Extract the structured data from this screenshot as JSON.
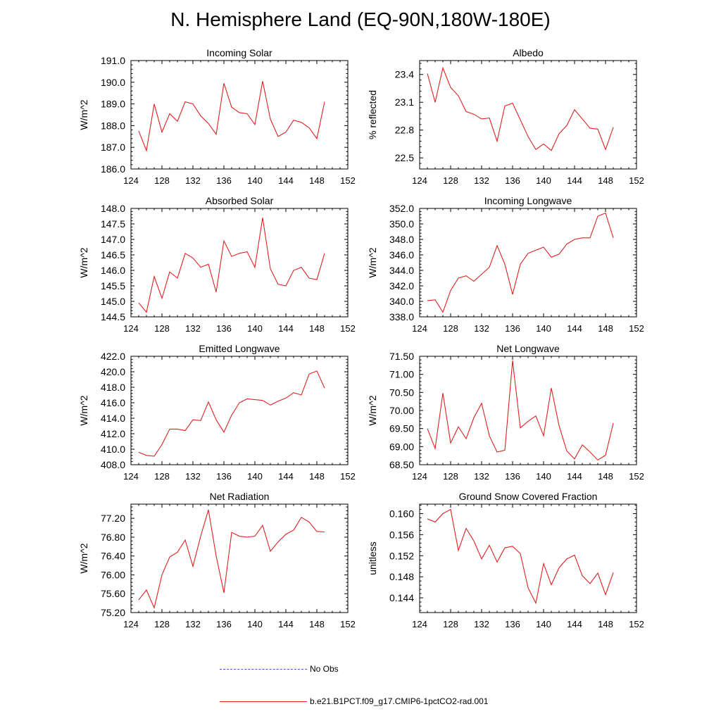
{
  "title": "N. Hemisphere Land (EQ-90N,180W-180E)",
  "legend": {
    "items": [
      {
        "label": "No Obs",
        "color": "#4455cc",
        "style": "dashed"
      },
      {
        "label": "b.e21.B1PCT.f09_g17.CMIP6-1pctCO2-rad.001",
        "color": "#dd2222",
        "style": "solid"
      }
    ]
  },
  "colors": {
    "series": "#dd2222",
    "axis": "#000000"
  },
  "chart_data": [
    {
      "type": "line",
      "title": "Incoming Solar",
      "xlabel": "",
      "ylabel": "W/m^2",
      "xlim": [
        124,
        152
      ],
      "ylim": [
        186.0,
        191.0
      ],
      "xticks": [
        124,
        128,
        132,
        136,
        140,
        144,
        148,
        152
      ],
      "yticks": [
        186.0,
        187.0,
        188.0,
        189.0,
        190.0,
        191.0
      ],
      "ydec": 1,
      "series": [
        {
          "name": "b.e21.B1PCT.f09_g17.CMIP6-1pctCO2-rad.001",
          "x": [
            125,
            126,
            127,
            128,
            129,
            130,
            131,
            132,
            133,
            134,
            135,
            136,
            137,
            138,
            139,
            140,
            141,
            142,
            143,
            144,
            145,
            146,
            147,
            148,
            149
          ],
          "y": [
            187.75,
            186.85,
            189.0,
            187.7,
            188.55,
            188.2,
            189.1,
            189.0,
            188.45,
            188.1,
            187.6,
            189.95,
            188.85,
            188.6,
            188.55,
            188.05,
            190.05,
            188.3,
            187.5,
            187.7,
            188.25,
            188.15,
            187.9,
            187.4,
            189.1
          ]
        }
      ]
    },
    {
      "type": "line",
      "title": "Albedo",
      "xlabel": "",
      "ylabel": "% reflected",
      "xlim": [
        124,
        152
      ],
      "ylim": [
        22.38,
        23.55
      ],
      "xticks": [
        124,
        128,
        132,
        136,
        140,
        144,
        148,
        152
      ],
      "yticks": [
        22.5,
        22.8,
        23.1,
        23.4
      ],
      "ydec": 1,
      "series": [
        {
          "name": "b.e21.B1PCT.f09_g17.CMIP6-1pctCO2-rad.001",
          "x": [
            125,
            126,
            127,
            128,
            129,
            130,
            131,
            132,
            133,
            134,
            135,
            136,
            137,
            138,
            139,
            140,
            141,
            142,
            143,
            144,
            145,
            146,
            147,
            148,
            149
          ],
          "y": [
            23.41,
            23.1,
            23.47,
            23.26,
            23.17,
            23.0,
            22.97,
            22.92,
            22.93,
            22.68,
            23.06,
            23.09,
            22.91,
            22.73,
            22.59,
            22.65,
            22.58,
            22.76,
            22.85,
            23.02,
            22.92,
            22.82,
            22.81,
            22.59,
            22.83
          ]
        }
      ]
    },
    {
      "type": "line",
      "title": "Absorbed Solar",
      "xlabel": "",
      "ylabel": "W/m^2",
      "xlim": [
        124,
        152
      ],
      "ylim": [
        144.5,
        148.0
      ],
      "xticks": [
        124,
        128,
        132,
        136,
        140,
        144,
        148,
        152
      ],
      "yticks": [
        144.5,
        145.0,
        145.5,
        146.0,
        146.5,
        147.0,
        147.5,
        148.0
      ],
      "ydec": 1,
      "series": [
        {
          "name": "b.e21.B1PCT.f09_g17.CMIP6-1pctCO2-rad.001",
          "x": [
            125,
            126,
            127,
            128,
            129,
            130,
            131,
            132,
            133,
            134,
            135,
            136,
            137,
            138,
            139,
            140,
            141,
            142,
            143,
            144,
            145,
            146,
            147,
            148,
            149
          ],
          "y": [
            144.95,
            144.65,
            145.8,
            145.1,
            145.95,
            145.75,
            146.55,
            146.4,
            146.1,
            146.2,
            145.3,
            146.95,
            146.45,
            146.55,
            146.6,
            146.1,
            147.7,
            146.05,
            145.55,
            145.5,
            146.0,
            146.1,
            145.75,
            145.7,
            146.55
          ]
        }
      ]
    },
    {
      "type": "line",
      "title": "Incoming Longwave",
      "xlabel": "",
      "ylabel": "W/m^2",
      "xlim": [
        124,
        152
      ],
      "ylim": [
        338.0,
        352.0
      ],
      "xticks": [
        124,
        128,
        132,
        136,
        140,
        144,
        148,
        152
      ],
      "yticks": [
        338.0,
        340.0,
        342.0,
        344.0,
        346.0,
        348.0,
        350.0,
        352.0
      ],
      "ydec": 1,
      "series": [
        {
          "name": "b.e21.B1PCT.f09_g17.CMIP6-1pctCO2-rad.001",
          "x": [
            125,
            126,
            127,
            128,
            129,
            130,
            131,
            132,
            133,
            134,
            135,
            136,
            137,
            138,
            139,
            140,
            141,
            142,
            143,
            144,
            145,
            146,
            147,
            148,
            149
          ],
          "y": [
            340.1,
            340.2,
            338.6,
            341.4,
            343.0,
            343.3,
            342.6,
            343.5,
            344.4,
            347.2,
            344.8,
            340.9,
            344.8,
            346.2,
            346.6,
            347.0,
            345.7,
            346.1,
            347.4,
            348.0,
            348.2,
            348.2,
            351.0,
            351.4,
            348.2
          ]
        }
      ]
    },
    {
      "type": "line",
      "title": "Emitted Longwave",
      "xlabel": "",
      "ylabel": "W/m^2",
      "xlim": [
        124,
        152
      ],
      "ylim": [
        408.0,
        422.0
      ],
      "xticks": [
        124,
        128,
        132,
        136,
        140,
        144,
        148,
        152
      ],
      "yticks": [
        408.0,
        410.0,
        412.0,
        414.0,
        416.0,
        418.0,
        420.0,
        422.0
      ],
      "ydec": 1,
      "series": [
        {
          "name": "b.e21.B1PCT.f09_g17.CMIP6-1pctCO2-rad.001",
          "x": [
            125,
            126,
            127,
            128,
            129,
            130,
            131,
            132,
            133,
            134,
            135,
            136,
            137,
            138,
            139,
            140,
            141,
            142,
            143,
            144,
            145,
            146,
            147,
            148,
            149
          ],
          "y": [
            409.6,
            409.2,
            409.1,
            410.6,
            412.6,
            412.6,
            412.4,
            413.8,
            413.7,
            416.1,
            413.8,
            412.2,
            414.4,
            416.0,
            416.5,
            416.4,
            416.3,
            415.7,
            416.2,
            416.6,
            417.3,
            417.0,
            419.7,
            420.1,
            417.9
          ]
        }
      ]
    },
    {
      "type": "line",
      "title": "Net Longwave",
      "xlabel": "",
      "ylabel": "W/m^2",
      "xlim": [
        124,
        152
      ],
      "ylim": [
        68.5,
        71.5
      ],
      "xticks": [
        124,
        128,
        132,
        136,
        140,
        144,
        148,
        152
      ],
      "yticks": [
        68.5,
        69.0,
        69.5,
        70.0,
        70.5,
        71.0,
        71.5
      ],
      "ydec": 2,
      "series": [
        {
          "name": "b.e21.B1PCT.f09_g17.CMIP6-1pctCO2-rad.001",
          "x": [
            125,
            126,
            127,
            128,
            129,
            130,
            131,
            132,
            133,
            134,
            135,
            136,
            137,
            138,
            139,
            140,
            141,
            142,
            143,
            144,
            145,
            146,
            147,
            148,
            149
          ],
          "y": [
            69.5,
            68.95,
            70.48,
            69.1,
            69.55,
            69.22,
            69.8,
            70.2,
            69.3,
            68.85,
            68.9,
            71.38,
            69.52,
            69.7,
            69.85,
            69.3,
            70.62,
            69.58,
            68.88,
            68.66,
            69.05,
            68.85,
            68.63,
            68.76,
            69.65
          ]
        }
      ]
    },
    {
      "type": "line",
      "title": "Net Radiation",
      "xlabel": "",
      "ylabel": "W/m^2",
      "xlim": [
        124,
        152
      ],
      "ylim": [
        75.2,
        77.5
      ],
      "xticks": [
        124,
        128,
        132,
        136,
        140,
        144,
        148,
        152
      ],
      "yticks": [
        75.2,
        75.6,
        76.0,
        76.4,
        76.8,
        77.2
      ],
      "ydec": 2,
      "series": [
        {
          "name": "b.e21.B1PCT.f09_g17.CMIP6-1pctCO2-rad.001",
          "x": [
            125,
            126,
            127,
            128,
            129,
            130,
            131,
            132,
            133,
            134,
            135,
            136,
            137,
            138,
            139,
            140,
            141,
            142,
            143,
            144,
            145,
            146,
            147,
            148,
            149
          ],
          "y": [
            75.47,
            75.68,
            75.3,
            76.0,
            76.38,
            76.48,
            76.74,
            76.18,
            76.82,
            77.38,
            76.4,
            75.62,
            76.9,
            76.82,
            76.8,
            76.82,
            77.05,
            76.5,
            76.7,
            76.86,
            76.95,
            77.22,
            77.12,
            76.92,
            76.91
          ]
        }
      ]
    },
    {
      "type": "line",
      "title": "Ground Snow Covered Fraction",
      "xlabel": "",
      "ylabel": "unitless",
      "xlim": [
        124,
        152
      ],
      "ylim": [
        0.1412,
        0.1618
      ],
      "xticks": [
        124,
        128,
        132,
        136,
        140,
        144,
        148,
        152
      ],
      "yticks": [
        0.144,
        0.148,
        0.152,
        0.156,
        0.16
      ],
      "ydec": 3,
      "series": [
        {
          "name": "b.e21.B1PCT.f09_g17.CMIP6-1pctCO2-rad.001",
          "x": [
            125,
            126,
            127,
            128,
            129,
            130,
            131,
            132,
            133,
            134,
            135,
            136,
            137,
            138,
            139,
            140,
            141,
            142,
            143,
            144,
            145,
            146,
            147,
            148,
            149
          ],
          "y": [
            0.159,
            0.1584,
            0.16,
            0.1608,
            0.153,
            0.1572,
            0.1548,
            0.1514,
            0.154,
            0.1508,
            0.1535,
            0.1538,
            0.1524,
            0.1459,
            0.143,
            0.1505,
            0.1465,
            0.1497,
            0.1514,
            0.1521,
            0.1482,
            0.1467,
            0.1487,
            0.1446,
            0.1488
          ]
        }
      ]
    }
  ]
}
